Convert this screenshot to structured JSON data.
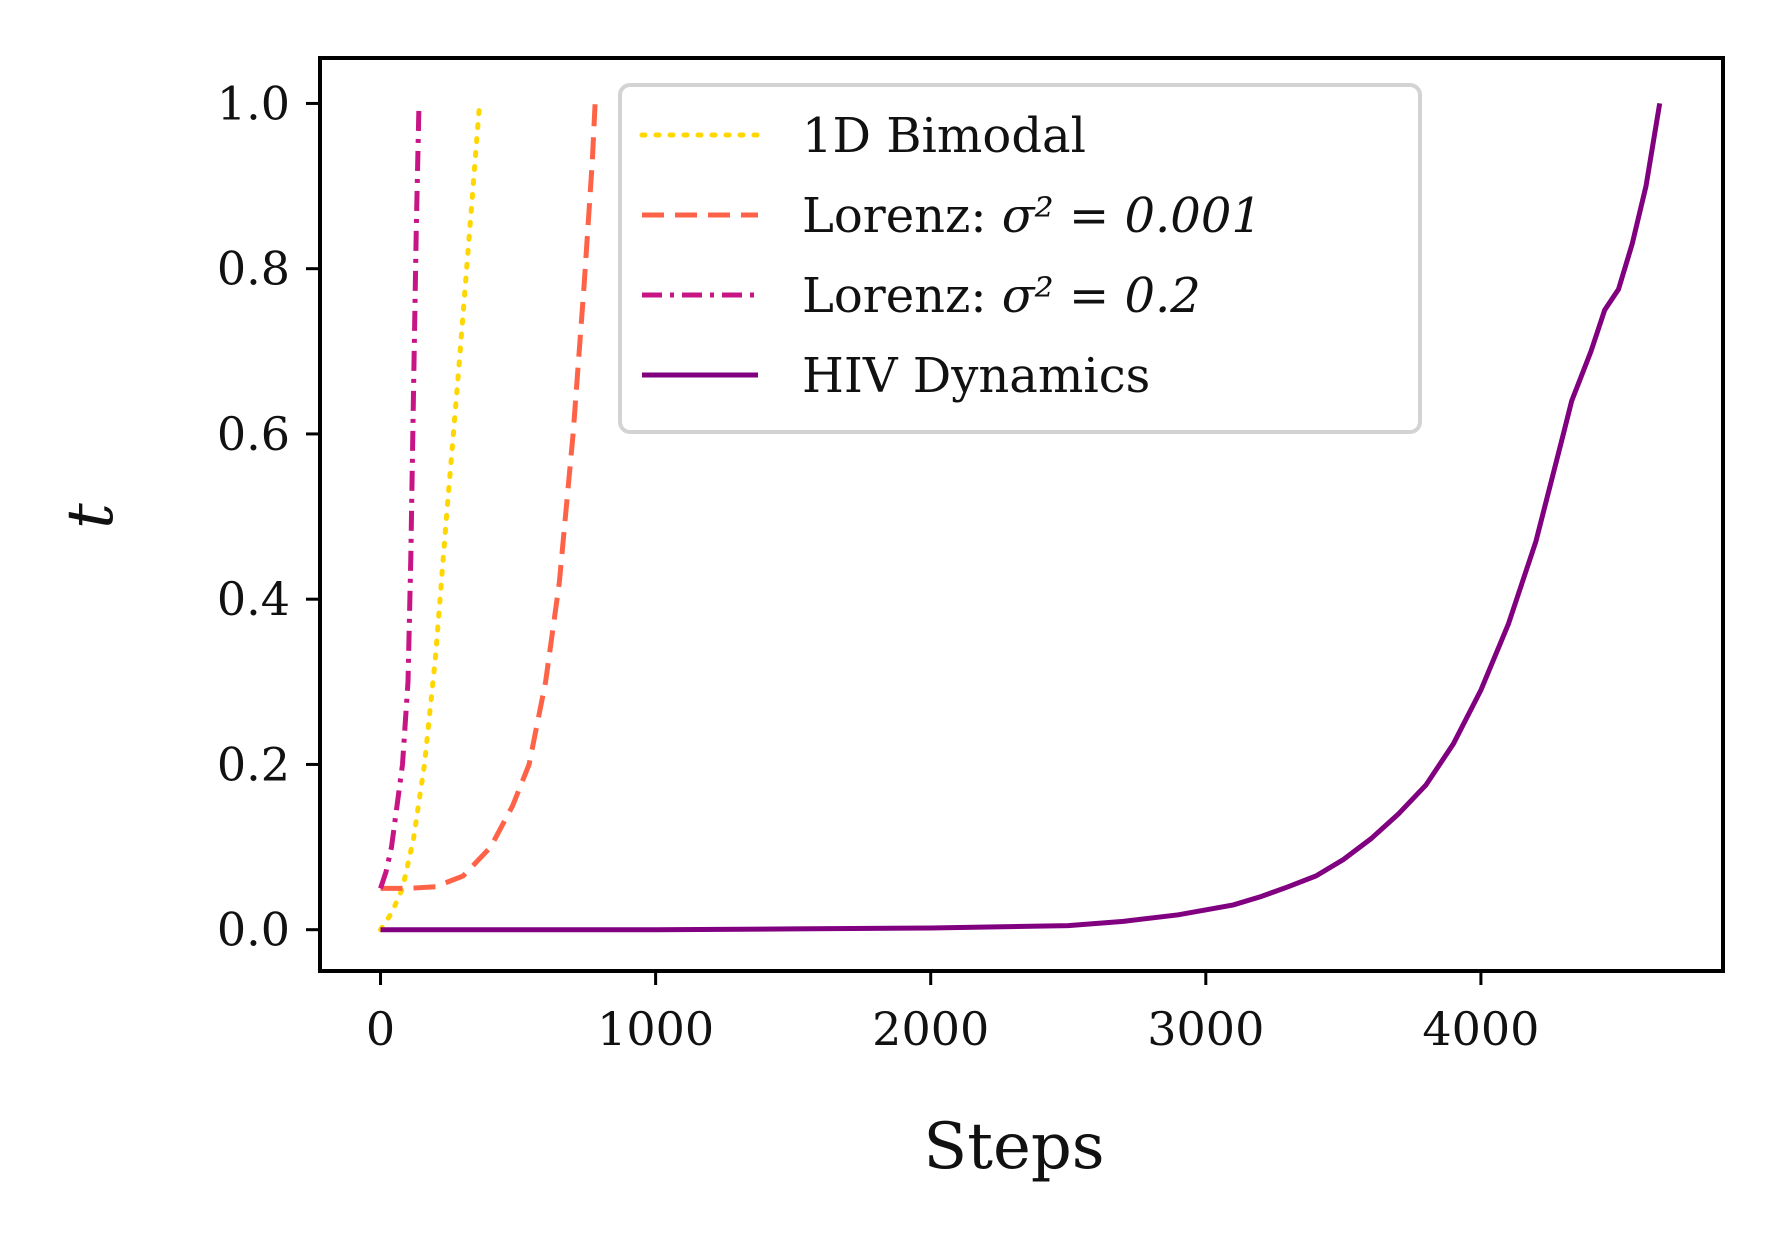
{
  "chart_data": {
    "type": "line",
    "xlabel": "Steps",
    "ylabel": "t",
    "xlim": [
      -220,
      4880
    ],
    "ylim": [
      -0.05,
      1.055
    ],
    "xticks": [
      0,
      1000,
      2000,
      3000,
      4000
    ],
    "xtick_labels": [
      "0",
      "1000",
      "2000",
      "3000",
      "4000"
    ],
    "yticks": [
      0.0,
      0.2,
      0.4,
      0.6,
      0.8,
      1.0
    ],
    "ytick_labels": [
      "0.0",
      "0.2",
      "0.4",
      "0.6",
      "0.8",
      "1.0"
    ],
    "grid": false,
    "legend_position": "top-center",
    "series": [
      {
        "name": "1D Bimodal",
        "style": "dotted",
        "color": "#FFD700",
        "x": [
          0,
          40,
          80,
          120,
          160,
          200,
          240,
          280,
          320,
          360
        ],
        "y": [
          0.0,
          0.02,
          0.05,
          0.11,
          0.2,
          0.33,
          0.5,
          0.66,
          0.83,
          1.0
        ]
      },
      {
        "name": "Lorenz: σ² = 0.001",
        "name_prefix": "Lorenz: ",
        "name_math": "σ² = 0.001",
        "style": "dashed",
        "color": "#FF6347",
        "x": [
          0,
          100,
          200,
          300,
          400,
          480,
          540,
          600,
          650,
          700,
          740,
          770,
          780
        ],
        "y": [
          0.05,
          0.05,
          0.052,
          0.065,
          0.1,
          0.15,
          0.2,
          0.3,
          0.42,
          0.6,
          0.78,
          0.93,
          1.0
        ]
      },
      {
        "name": "Lorenz: σ² = 0.2",
        "name_prefix": "Lorenz: ",
        "name_math": "σ² = 0.2",
        "style": "dashdot",
        "color": "#C71585",
        "x": [
          0,
          20,
          40,
          60,
          80,
          100,
          110,
          120,
          130,
          140
        ],
        "y": [
          0.05,
          0.07,
          0.1,
          0.15,
          0.2,
          0.3,
          0.45,
          0.65,
          0.85,
          1.0
        ]
      },
      {
        "name": "HIV Dynamics",
        "style": "solid",
        "color": "#800080",
        "x": [
          0,
          1000,
          1500,
          2000,
          2500,
          2700,
          2900,
          3100,
          3200,
          3300,
          3400,
          3500,
          3600,
          3700,
          3800,
          3900,
          4000,
          4100,
          4200,
          4300,
          4330,
          4400,
          4450,
          4500,
          4550,
          4600,
          4650
        ],
        "y": [
          0.0,
          0.0,
          0.001,
          0.002,
          0.005,
          0.01,
          0.018,
          0.03,
          0.04,
          0.052,
          0.065,
          0.085,
          0.11,
          0.14,
          0.175,
          0.225,
          0.29,
          0.37,
          0.47,
          0.6,
          0.64,
          0.7,
          0.75,
          0.775,
          0.83,
          0.9,
          1.0
        ]
      }
    ]
  }
}
